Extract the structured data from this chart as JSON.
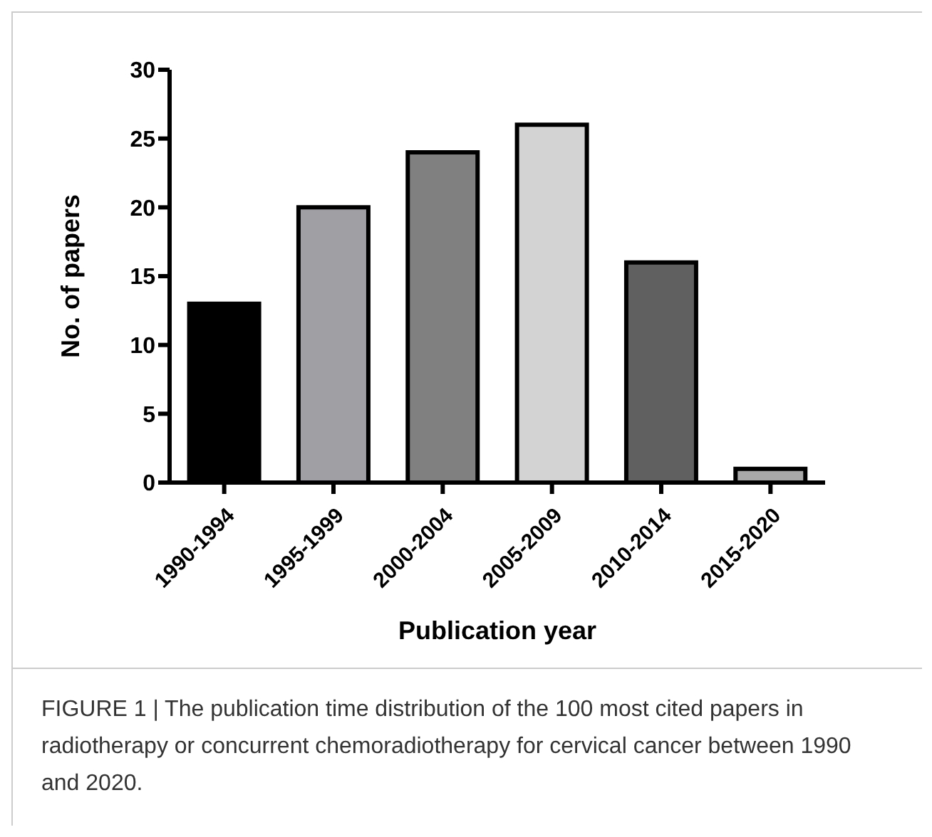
{
  "chart_data": {
    "type": "bar",
    "xlabel": "Publication year",
    "ylabel": "No. of papers",
    "categories": [
      "1990-1994",
      "1995-1999",
      "2000-2004",
      "2005-2009",
      "2010-2014",
      "2015-2020"
    ],
    "values": [
      13,
      20,
      24,
      26,
      16,
      1
    ],
    "colors": [
      "#000000",
      "#a09fa4",
      "#808080",
      "#d3d3d3",
      "#606060",
      "#a8a8a8"
    ],
    "ylim": [
      0,
      30
    ],
    "yticks": [
      0,
      5,
      10,
      15,
      20,
      25,
      30
    ],
    "grid": false,
    "legend": false,
    "annotations": [
      "FIGURE 1 | The publication time distribution of the 100 most cited papers in radiotherapy or concurrent chemoradiotherapy for cervical cancer between 1990 and 2020."
    ]
  }
}
